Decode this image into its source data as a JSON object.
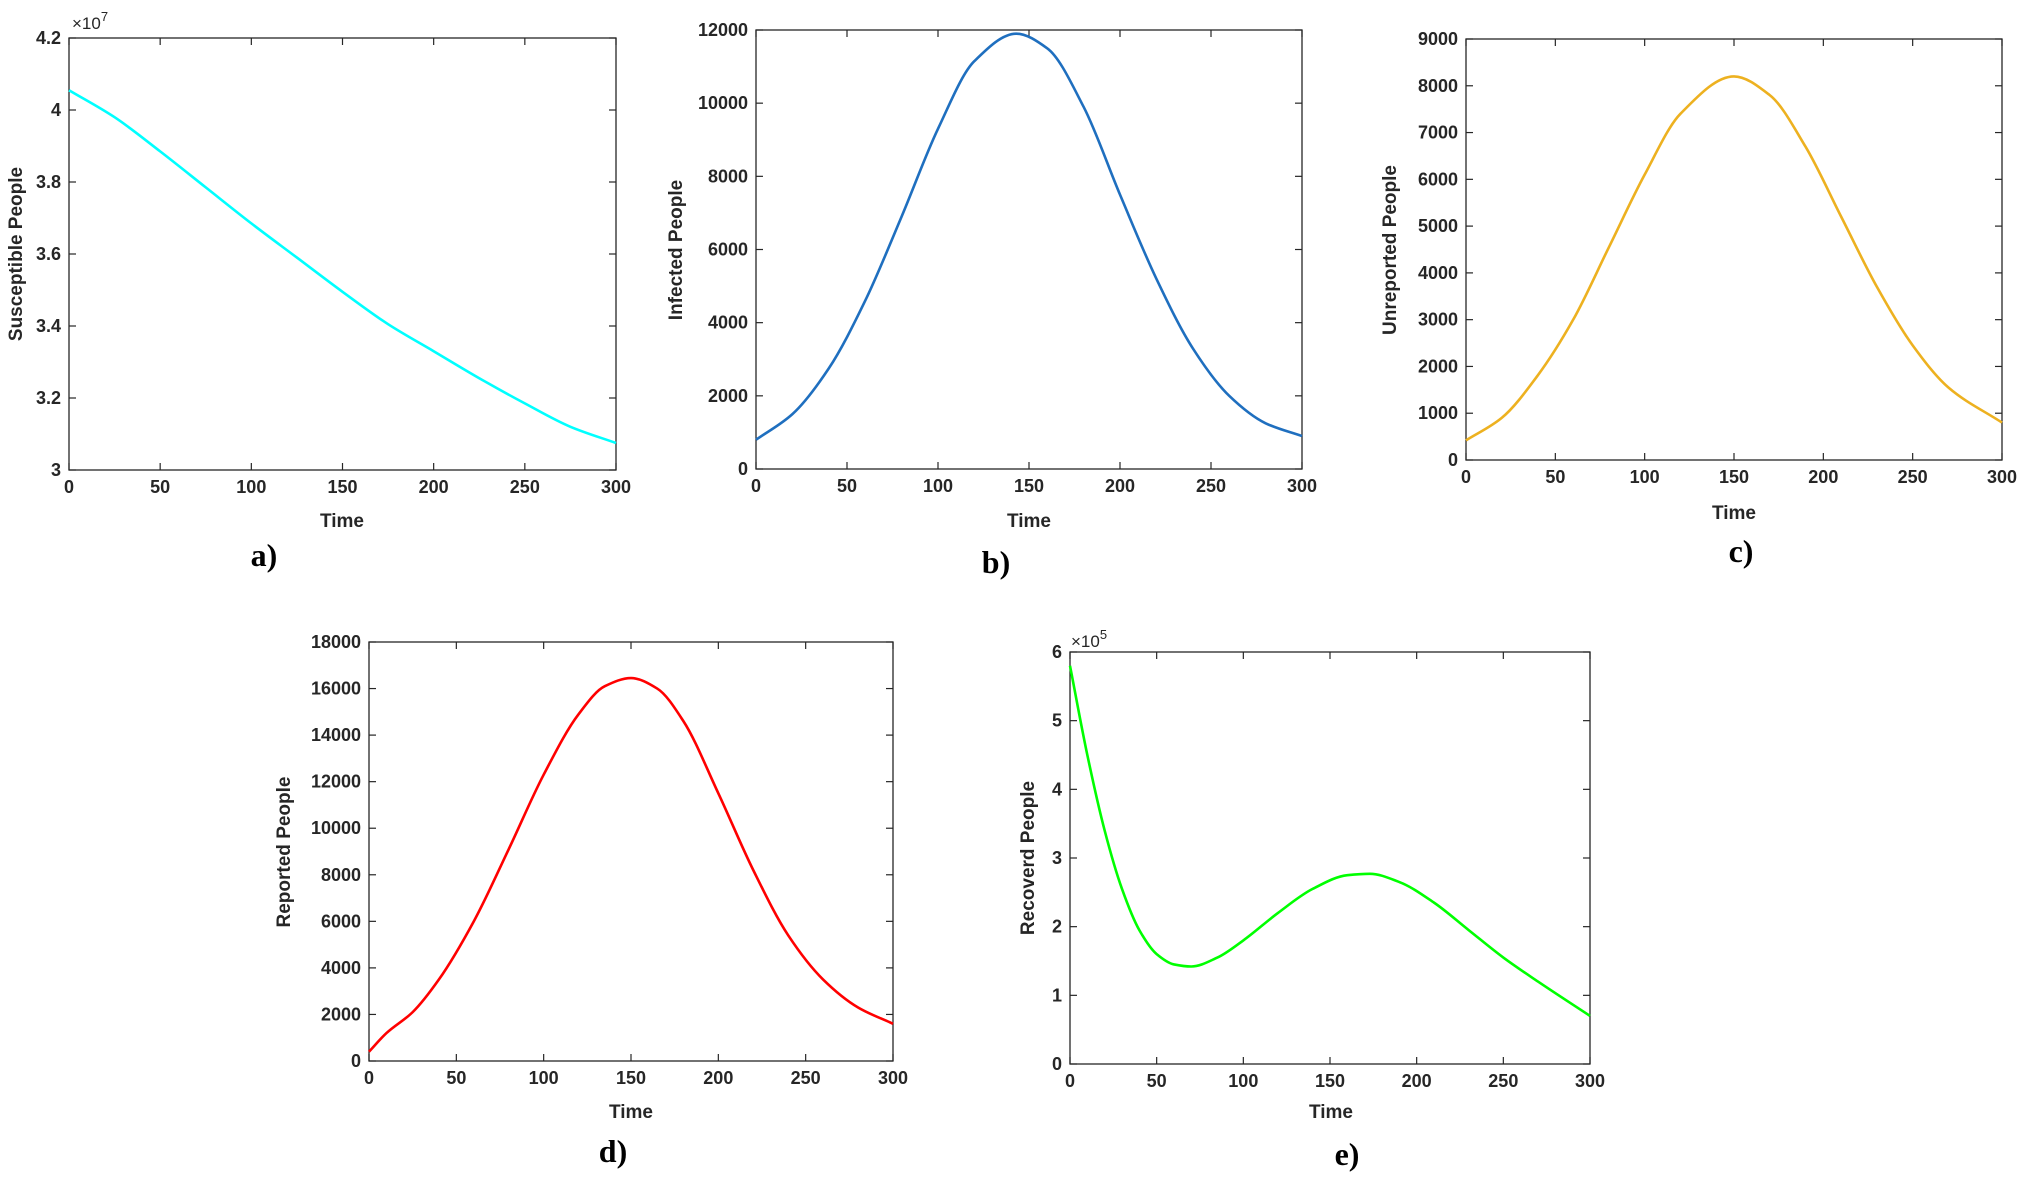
{
  "figure_title": "",
  "chart_data": [
    {
      "id": "a",
      "type": "line",
      "panel_label": "a)",
      "title": "",
      "xlabel": "Time",
      "ylabel": "Susceptible People",
      "xlim": [
        0,
        300
      ],
      "ylim": [
        3.0,
        4.2
      ],
      "xticks": [
        0,
        50,
        100,
        150,
        200,
        250,
        300
      ],
      "yticks": [
        3,
        3.2,
        3.4,
        3.6,
        3.8,
        4,
        4.2
      ],
      "ytick_labels": [
        "3",
        "3.2",
        "3.4",
        "3.6",
        "3.8",
        "4",
        "4.2"
      ],
      "y_exponent": {
        "base": "×10",
        "power": "7"
      },
      "color": "#00ffff",
      "x": [
        0,
        25,
        50,
        75,
        100,
        125,
        150,
        175,
        200,
        225,
        250,
        275,
        300
      ],
      "y": [
        4.055,
        3.98,
        3.885,
        3.785,
        3.685,
        3.59,
        3.495,
        3.405,
        3.33,
        3.255,
        3.185,
        3.12,
        3.075
      ]
    },
    {
      "id": "b",
      "type": "line",
      "panel_label": "b)",
      "title": "",
      "xlabel": "Time",
      "ylabel": "Infected People",
      "xlim": [
        0,
        300
      ],
      "ylim": [
        0,
        12000
      ],
      "xticks": [
        0,
        50,
        100,
        150,
        200,
        250,
        300
      ],
      "yticks": [
        0,
        2000,
        4000,
        6000,
        8000,
        10000,
        12000
      ],
      "ytick_labels": [
        "0",
        "2000",
        "4000",
        "6000",
        "8000",
        "10000",
        "12000"
      ],
      "y_exponent": null,
      "color": "#1f6fbf",
      "x": [
        0,
        20,
        40,
        60,
        80,
        100,
        120,
        143,
        160,
        180,
        200,
        220,
        240,
        260,
        280,
        300
      ],
      "y": [
        800,
        1500,
        2750,
        4600,
        6900,
        9300,
        11150,
        11900,
        11500,
        9900,
        7500,
        5200,
        3300,
        2000,
        1250,
        900
      ]
    },
    {
      "id": "c",
      "type": "line",
      "panel_label": "c)",
      "title": "",
      "xlabel": "Time",
      "ylabel": "Unreported People",
      "xlim": [
        0,
        300
      ],
      "ylim": [
        0,
        9000
      ],
      "xticks": [
        0,
        50,
        100,
        150,
        200,
        250,
        300
      ],
      "yticks": [
        0,
        1000,
        2000,
        3000,
        4000,
        5000,
        6000,
        7000,
        8000,
        9000
      ],
      "ytick_labels": [
        "0",
        "1000",
        "2000",
        "3000",
        "4000",
        "5000",
        "6000",
        "7000",
        "8000",
        "9000"
      ],
      "y_exponent": null,
      "color": "#edb120",
      "x": [
        0,
        20,
        40,
        60,
        80,
        100,
        120,
        150,
        170,
        190,
        210,
        230,
        250,
        270,
        300
      ],
      "y": [
        420,
        900,
        1800,
        3000,
        4550,
        6100,
        7400,
        8200,
        7800,
        6700,
        5200,
        3700,
        2450,
        1550,
        800
      ]
    },
    {
      "id": "d",
      "type": "line",
      "panel_label": "d)",
      "title": "",
      "xlabel": "Time",
      "ylabel": "Reported People",
      "xlim": [
        0,
        300
      ],
      "ylim": [
        0,
        18000
      ],
      "xticks": [
        0,
        50,
        100,
        150,
        200,
        250,
        300
      ],
      "yticks": [
        0,
        2000,
        4000,
        6000,
        8000,
        10000,
        12000,
        14000,
        16000,
        18000
      ],
      "ytick_labels": [
        "0",
        "2000",
        "4000",
        "6000",
        "8000",
        "10000",
        "12000",
        "14000",
        "16000",
        "18000"
      ],
      "y_exponent": null,
      "color": "#ff0000",
      "x": [
        0,
        10,
        25,
        40,
        60,
        80,
        100,
        120,
        135,
        150,
        165,
        180,
        200,
        220,
        240,
        260,
        280,
        300
      ],
      "y": [
        400,
        1200,
        2100,
        3500,
        6000,
        9100,
        12300,
        14900,
        16100,
        16450,
        16000,
        14600,
        11500,
        8200,
        5400,
        3500,
        2300,
        1600
      ]
    },
    {
      "id": "e",
      "type": "line",
      "panel_label": "e)",
      "title": "",
      "xlabel": "Time",
      "ylabel": "Recoverd People",
      "xlim": [
        0,
        300
      ],
      "ylim": [
        0,
        6
      ],
      "xticks": [
        0,
        50,
        100,
        150,
        200,
        250,
        300
      ],
      "yticks": [
        0,
        1,
        2,
        3,
        4,
        5,
        6
      ],
      "ytick_labels": [
        "0",
        "1",
        "2",
        "3",
        "4",
        "5",
        "6"
      ],
      "y_exponent": {
        "base": "×10",
        "power": "5"
      },
      "color": "#00ff00",
      "x": [
        0,
        10,
        20,
        30,
        40,
        50,
        60,
        70,
        85,
        100,
        120,
        140,
        160,
        173,
        190,
        210,
        230,
        250,
        270,
        300
      ],
      "y": [
        5.8,
        4.5,
        3.4,
        2.55,
        1.95,
        1.6,
        1.45,
        1.42,
        1.55,
        1.8,
        2.2,
        2.55,
        2.75,
        2.77,
        2.65,
        2.35,
        1.95,
        1.55,
        1.2,
        0.7
      ]
    }
  ]
}
